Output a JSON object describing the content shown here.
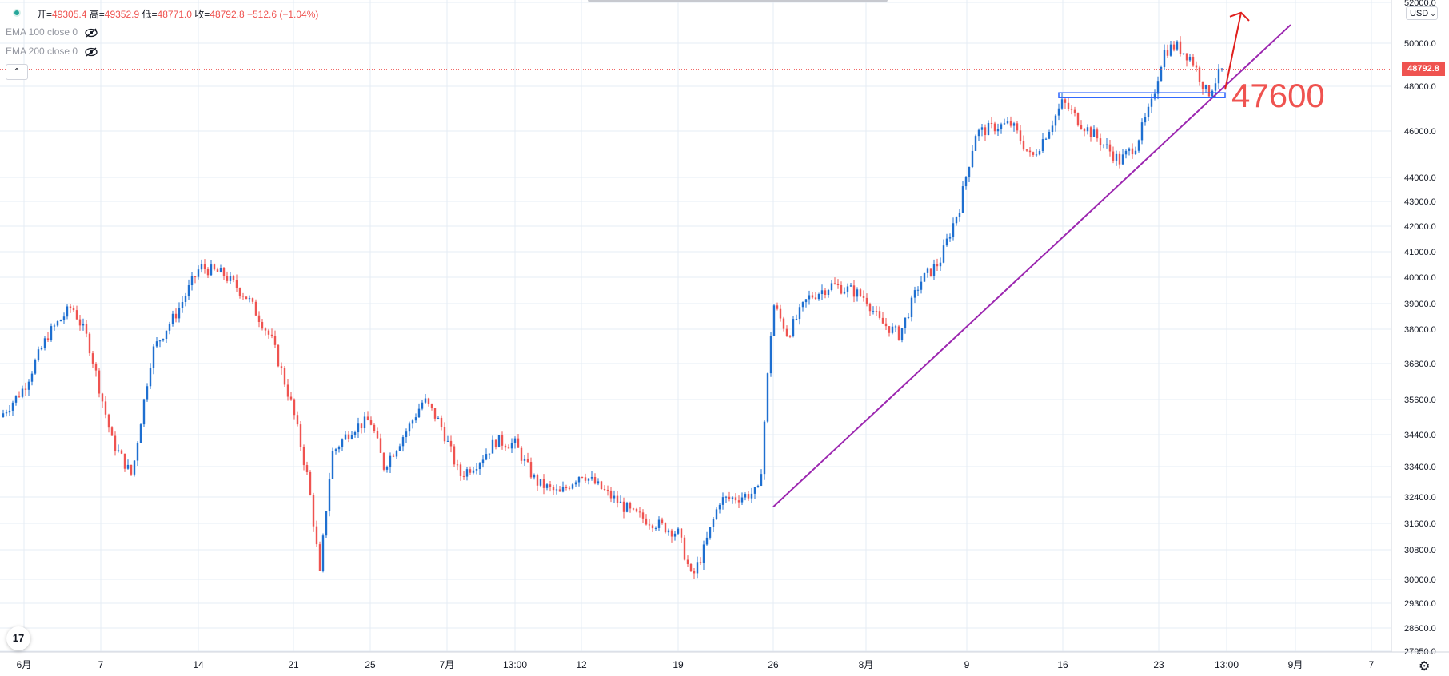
{
  "legend": {
    "open_label": "开=",
    "open": "49305.4",
    "high_label": "高=",
    "high": "49352.9",
    "low_label": "低=",
    "low": "48771.0",
    "close_label": "收=",
    "close": "48792.8",
    "change": "−512.6 (−1.04%)",
    "indicators": [
      "EMA 100 close 0",
      "EMA 200 close 0"
    ]
  },
  "currency": "USD",
  "last_price_label": "48792.8",
  "annotation_text": "47600",
  "colors": {
    "up": "#1e6fd0",
    "down": "#ef5350",
    "trendline": "#9c27b0",
    "arrow": "#e0201e",
    "support": "#2962ff",
    "grid": "#e6ecf4"
  },
  "chart_data": {
    "type": "candlestick",
    "ylim": [
      27950,
      52000
    ],
    "y_ticks": [
      "52000.0",
      "50000.0",
      "48000.0",
      "46000.0",
      "44000.0",
      "43000.0",
      "42000.0",
      "41000.0",
      "40000.0",
      "39000.0",
      "38000.0",
      "36800.0",
      "35600.0",
      "34400.0",
      "33400.0",
      "32400.0",
      "31600.0",
      "30800.0",
      "30000.0",
      "29300.0",
      "28600.0",
      "27950.0"
    ],
    "x_ticks": [
      "6月",
      "7",
      "14",
      "21",
      "25",
      "7月",
      "13:00",
      "12",
      "19",
      "26",
      "8月",
      "9",
      "16",
      "23",
      "13:00",
      "9月",
      "7"
    ],
    "last_price": 48792.8,
    "approx_close_path": [
      {
        "x": "6月",
        "y": 35000
      },
      {
        "x": "7",
        "y": 38800
      },
      {
        "x": "14",
        "y": 37500
      },
      {
        "x": "21",
        "y": 34500
      },
      {
        "x": "25",
        "y": 34300
      },
      {
        "x": "7月",
        "y": 35400
      },
      {
        "x": "13:00",
        "y": 33900
      },
      {
        "x": "12",
        "y": 33200
      },
      {
        "x": "19",
        "y": 31500
      },
      {
        "x": "26",
        "y": 32200
      },
      {
        "x": "8月",
        "y": 39800
      },
      {
        "x": "9",
        "y": 43500
      },
      {
        "x": "16",
        "y": 47200
      },
      {
        "x": "23",
        "y": 49800
      },
      {
        "x": "13:00",
        "y": 48792.8
      }
    ],
    "extremes": {
      "high": 50400,
      "low": 28900
    },
    "support_level": 47600,
    "trendline": {
      "from": {
        "x": "26",
        "y": 32100
      },
      "to": {
        "x": "9月",
        "y": 50900
      }
    }
  }
}
